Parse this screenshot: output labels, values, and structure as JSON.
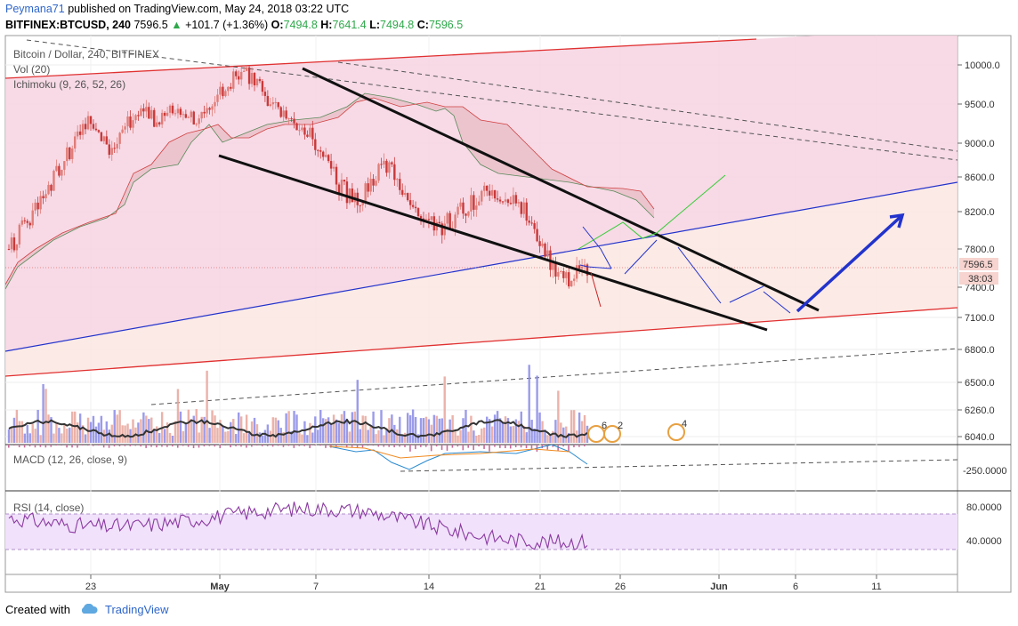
{
  "header": {
    "author": "Peymana71",
    "published_text": "published on TradingView.com, May 24, 2018 03:22 UTC",
    "symbol": "BITFINEX:BTCUSD, 240",
    "last": "7596.5",
    "change": "+101.7 (+1.36%)",
    "o_label": "O:",
    "o_value": "7494.8",
    "h_label": "H:",
    "h_value": "7641.4",
    "l_label": "L:",
    "l_value": "7494.8",
    "c_label": "C:",
    "c_value": "7596.5"
  },
  "legend": {
    "main": "Bitcoin / Dollar, 240, BITFINEX",
    "vol": "Vol (20)",
    "ichimoku": "Ichimoku (9, 26, 52, 26)",
    "macd": "MACD (12, 26, close, 9)",
    "rsi": "RSI (14, close)"
  },
  "price_badges": {
    "last_price": "7596.5",
    "countdown": "38:03"
  },
  "event_badges": [
    "6",
    "2",
    "4"
  ],
  "footer": {
    "created_with": "Created with",
    "brand": "TradingView"
  },
  "colors": {
    "up": "#e07d78",
    "down": "#c9393a",
    "channel": "#e03030",
    "blue_line": "#2233cc",
    "cloud_red": "#f4b8bc",
    "cloud_green": "#c8cfc0",
    "rsi": "#8a3aa0",
    "trend": "#111111"
  },
  "chart_data": {
    "type": "candlestick",
    "symbol": "BITFINEX:BTCUSD",
    "interval": "240",
    "price_axis": {
      "ticks": [
        "10000.0",
        "9500.0",
        "9000.0",
        "8600.0",
        "8200.0",
        "7800.0",
        "7400.0",
        "7100.0",
        "6800.0",
        "6500.0",
        "6260.0",
        "6040.0"
      ],
      "tick_values": [
        10000,
        9500,
        9000,
        8600,
        8200,
        7800,
        7400,
        7100,
        6800,
        6500,
        6260,
        6040
      ],
      "ylim": [
        5950,
        10150
      ]
    },
    "time_axis": {
      "ticks": [
        "23",
        "May",
        "7",
        "14",
        "21",
        "26",
        "Jun",
        "6",
        "11"
      ]
    },
    "macd_axis": {
      "ticks": [
        "-250.0000"
      ]
    },
    "rsi_axis": {
      "ticks": [
        "80.0000",
        "40.0000"
      ],
      "band": [
        30,
        70
      ]
    },
    "close_path": [
      7800,
      8050,
      8350,
      8700,
      9000,
      9300,
      8900,
      9200,
      9450,
      9250,
      9500,
      9300,
      9450,
      9700,
      9900,
      9800,
      9450,
      9300,
      9150,
      8900,
      8500,
      8300,
      8600,
      8750,
      8400,
      8200,
      8000,
      8150,
      8300,
      8500,
      8400,
      8250,
      7950,
      7600,
      7500,
      7596.5
    ],
    "rsi_last": 30
  }
}
